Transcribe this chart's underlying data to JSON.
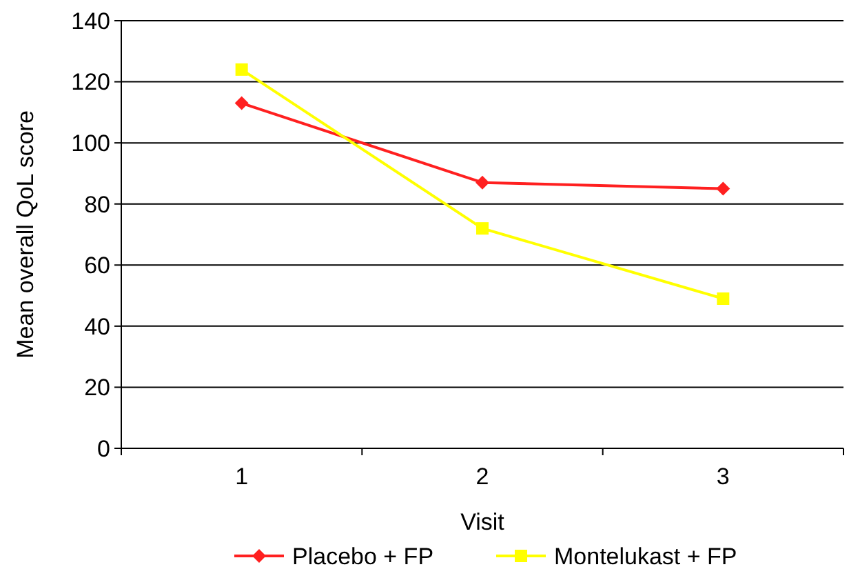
{
  "chart_data": {
    "type": "line",
    "xlabel": "Visit",
    "ylabel": "Mean overall QoL score",
    "categories": [
      "1",
      "2",
      "3"
    ],
    "series": [
      {
        "name": "Placebo + FP",
        "color": "#ff2020",
        "values": [
          113,
          87,
          85
        ],
        "marker": "diamond"
      },
      {
        "name": "Montelukast + FP",
        "color": "#ffff00",
        "values": [
          124,
          72,
          49
        ],
        "marker": "square"
      }
    ],
    "ylim": [
      0,
      140
    ],
    "yticks": [
      0,
      20,
      40,
      60,
      80,
      100,
      120,
      140
    ],
    "grid": "y",
    "legend": "bottom"
  }
}
